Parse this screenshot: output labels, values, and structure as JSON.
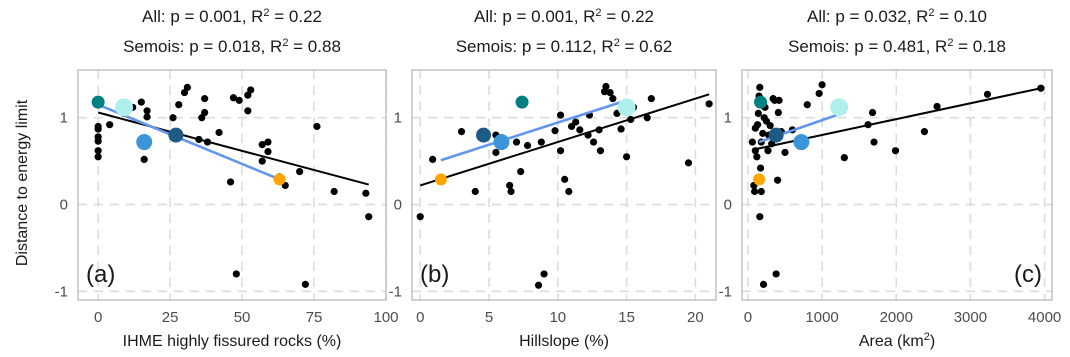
{
  "ylabel": "Distance to energy limit",
  "colors": {
    "all_points": "#000000",
    "all_fit": "#000000",
    "semois_fit": "#6495ed",
    "semois_points": [
      "#008080",
      "#b0f0ec",
      "#3a96d8",
      "#1d5b86",
      "#ffa500"
    ]
  },
  "chart_data": [
    {
      "type": "scatter",
      "panel_label": "(a)",
      "title_lines": [
        "All: p = 0.001, R² = 0.22",
        "Semois: p = 0.018, R² = 0.88"
      ],
      "xlabel": "IHME highly fissured rocks (%)",
      "ylabel": "Distance to energy limit",
      "xlim": [
        -7,
        100
      ],
      "ylim": [
        -1.1,
        1.55
      ],
      "xticks": [
        0,
        25,
        50,
        75,
        100
      ],
      "yticks": [
        -1,
        0,
        1
      ],
      "grid": true,
      "all_points": [
        [
          0,
          0.55
        ],
        [
          0,
          0.62
        ],
        [
          0,
          0.73
        ],
        [
          0,
          0.78
        ],
        [
          0,
          0.87
        ],
        [
          0,
          0.9
        ],
        [
          4,
          0.92
        ],
        [
          9,
          1.05
        ],
        [
          12,
          1.12
        ],
        [
          15,
          1.18
        ],
        [
          17,
          1.08
        ],
        [
          17,
          1.01
        ],
        [
          16,
          0.52
        ],
        [
          26,
          1.0
        ],
        [
          28,
          1.15
        ],
        [
          30,
          1.29
        ],
        [
          31,
          1.35
        ],
        [
          35,
          0.75
        ],
        [
          36,
          1.0
        ],
        [
          37,
          1.06
        ],
        [
          37,
          1.22
        ],
        [
          38,
          0.72
        ],
        [
          42,
          0.83
        ],
        [
          46,
          0.26
        ],
        [
          47,
          1.23
        ],
        [
          48,
          -0.8
        ],
        [
          49,
          1.2
        ],
        [
          52,
          1.26
        ],
        [
          53,
          1.32
        ],
        [
          52,
          1.08
        ],
        [
          57,
          0.69
        ],
        [
          57,
          0.5
        ],
        [
          59,
          0.72
        ],
        [
          59,
          0.61
        ],
        [
          63,
          0.32
        ],
        [
          65,
          0.22
        ],
        [
          70,
          0.38
        ],
        [
          72,
          -0.92
        ],
        [
          76,
          0.9
        ],
        [
          82,
          0.15
        ],
        [
          93,
          0.13
        ],
        [
          94,
          -0.14
        ]
      ],
      "all_fit": [
        [
          0,
          1.06
        ],
        [
          94,
          0.23
        ]
      ],
      "semois_points": [
        [
          0,
          1.18
        ],
        [
          9,
          1.12
        ],
        [
          16,
          0.72
        ],
        [
          27,
          0.8
        ],
        [
          63,
          0.29
        ]
      ],
      "semois_fit": [
        [
          0,
          1.15
        ],
        [
          63,
          0.29
        ]
      ]
    },
    {
      "type": "scatter",
      "panel_label": "(b)",
      "title_lines": [
        "All: p = 0.001, R² = 0.22",
        "Semois: p = 0.112, R² = 0.62"
      ],
      "xlabel": "Hillslope (%)",
      "ylabel": "",
      "xlim": [
        -0.6,
        21.5
      ],
      "ylim": [
        -1.1,
        1.55
      ],
      "xticks": [
        0,
        5,
        10,
        15,
        20
      ],
      "yticks": [
        -1,
        0,
        1
      ],
      "grid": true,
      "all_points": [
        [
          0,
          -0.14
        ],
        [
          0.9,
          0.52
        ],
        [
          3,
          0.84
        ],
        [
          4,
          0.15
        ],
        [
          5.5,
          0.8
        ],
        [
          6,
          0.68
        ],
        [
          7,
          0.72
        ],
        [
          7.3,
          0.38
        ],
        [
          7.8,
          0.68
        ],
        [
          8.6,
          -0.93
        ],
        [
          8.8,
          0.72
        ],
        [
          9,
          -0.8
        ],
        [
          9.8,
          0.85
        ],
        [
          10.2,
          1.03
        ],
        [
          10.2,
          0.62
        ],
        [
          10.5,
          0.29
        ],
        [
          10.8,
          0.15
        ],
        [
          11.3,
          0.95
        ],
        [
          11.6,
          0.86
        ],
        [
          12.2,
          0.8
        ],
        [
          12.3,
          1.03
        ],
        [
          12.6,
          0.72
        ],
        [
          13,
          0.86
        ],
        [
          13.1,
          0.62
        ],
        [
          13.4,
          1.3
        ],
        [
          13.5,
          1.36
        ],
        [
          13.8,
          1.29
        ],
        [
          14,
          1.22
        ],
        [
          14.3,
          1.05
        ],
        [
          14.6,
          0.87
        ],
        [
          14.8,
          1.1
        ],
        [
          15,
          0.55
        ],
        [
          15.3,
          0.98
        ],
        [
          15.5,
          1.12
        ],
        [
          16.5,
          1.0
        ],
        [
          16.8,
          1.22
        ],
        [
          19.5,
          0.48
        ],
        [
          21,
          1.16
        ],
        [
          5.5,
          0.6
        ],
        [
          6.5,
          0.22
        ],
        [
          11,
          0.9
        ],
        [
          6.6,
          0.15
        ]
      ],
      "all_fit": [
        [
          0,
          0.22
        ],
        [
          21,
          1.27
        ]
      ],
      "semois_points": [
        [
          7.4,
          1.18
        ],
        [
          15,
          1.12
        ],
        [
          5.9,
          0.72
        ],
        [
          4.6,
          0.8
        ],
        [
          1.5,
          0.29
        ]
      ],
      "semois_fit": [
        [
          1.5,
          0.51
        ],
        [
          15,
          1.2
        ]
      ]
    },
    {
      "type": "scatter",
      "panel_label": "(c)",
      "title_lines": [
        "All: p = 0.032, R² = 0.10",
        "Semois: p = 0.481, R² = 0.18"
      ],
      "xlabel": "Area (km²)",
      "ylabel": "",
      "xlim": [
        -80,
        4100
      ],
      "ylim": [
        -1.1,
        1.55
      ],
      "xticks": [
        0,
        1000,
        2000,
        3000,
        4000
      ],
      "yticks": [
        -1,
        0,
        1
      ],
      "grid": true,
      "all_points": [
        [
          60,
          0.72
        ],
        [
          80,
          0.22
        ],
        [
          90,
          0.15
        ],
        [
          100,
          0.88
        ],
        [
          120,
          0.55
        ],
        [
          130,
          0.92
        ],
        [
          140,
          1.05
        ],
        [
          150,
          1.25
        ],
        [
          160,
          1.35
        ],
        [
          160,
          -0.14
        ],
        [
          170,
          0.42
        ],
        [
          180,
          0.72
        ],
        [
          180,
          0.15
        ],
        [
          200,
          0.82
        ],
        [
          210,
          -0.92
        ],
        [
          220,
          1.0
        ],
        [
          230,
          1.12
        ],
        [
          250,
          0.96
        ],
        [
          270,
          0.62
        ],
        [
          280,
          0.8
        ],
        [
          300,
          0.91
        ],
        [
          320,
          0.7
        ],
        [
          340,
          1.22
        ],
        [
          360,
          1.2
        ],
        [
          380,
          -0.8
        ],
        [
          400,
          0.28
        ],
        [
          410,
          1.06
        ],
        [
          420,
          1.2
        ],
        [
          450,
          0.84
        ],
        [
          500,
          0.6
        ],
        [
          600,
          0.86
        ],
        [
          800,
          1.15
        ],
        [
          960,
          1.28
        ],
        [
          1000,
          1.38
        ],
        [
          1300,
          0.54
        ],
        [
          1620,
          0.92
        ],
        [
          1680,
          1.06
        ],
        [
          1700,
          0.72
        ],
        [
          1990,
          0.62
        ],
        [
          2380,
          0.84
        ],
        [
          2550,
          1.13
        ],
        [
          3230,
          1.27
        ],
        [
          3950,
          1.34
        ],
        [
          100,
          0.62
        ]
      ],
      "all_fit": [
        [
          60,
          0.63
        ],
        [
          3950,
          1.34
        ]
      ],
      "semois_points": [
        [
          170,
          1.18
        ],
        [
          1230,
          1.12
        ],
        [
          720,
          0.72
        ],
        [
          380,
          0.8
        ],
        [
          150,
          0.29
        ]
      ],
      "semois_fit": [
        [
          150,
          0.72
        ],
        [
          1230,
          1.04
        ]
      ]
    }
  ]
}
